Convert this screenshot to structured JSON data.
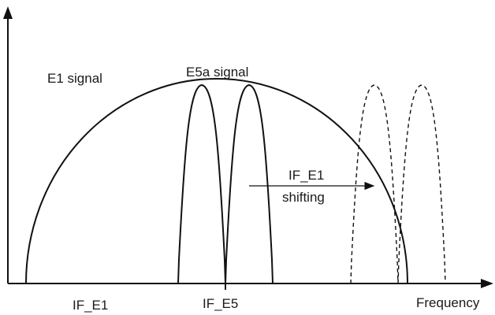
{
  "labels": {
    "e1_signal": "E1 signal",
    "e5a_signal": "E5a signal",
    "shift_line1": "IF_E1",
    "shift_line2": "shifting",
    "if_e1": "IF_E1",
    "if_e5": "IF_E5",
    "x_axis": "Frequency"
  },
  "colors": {
    "stroke": "#111111",
    "background": "#ffffff"
  }
}
